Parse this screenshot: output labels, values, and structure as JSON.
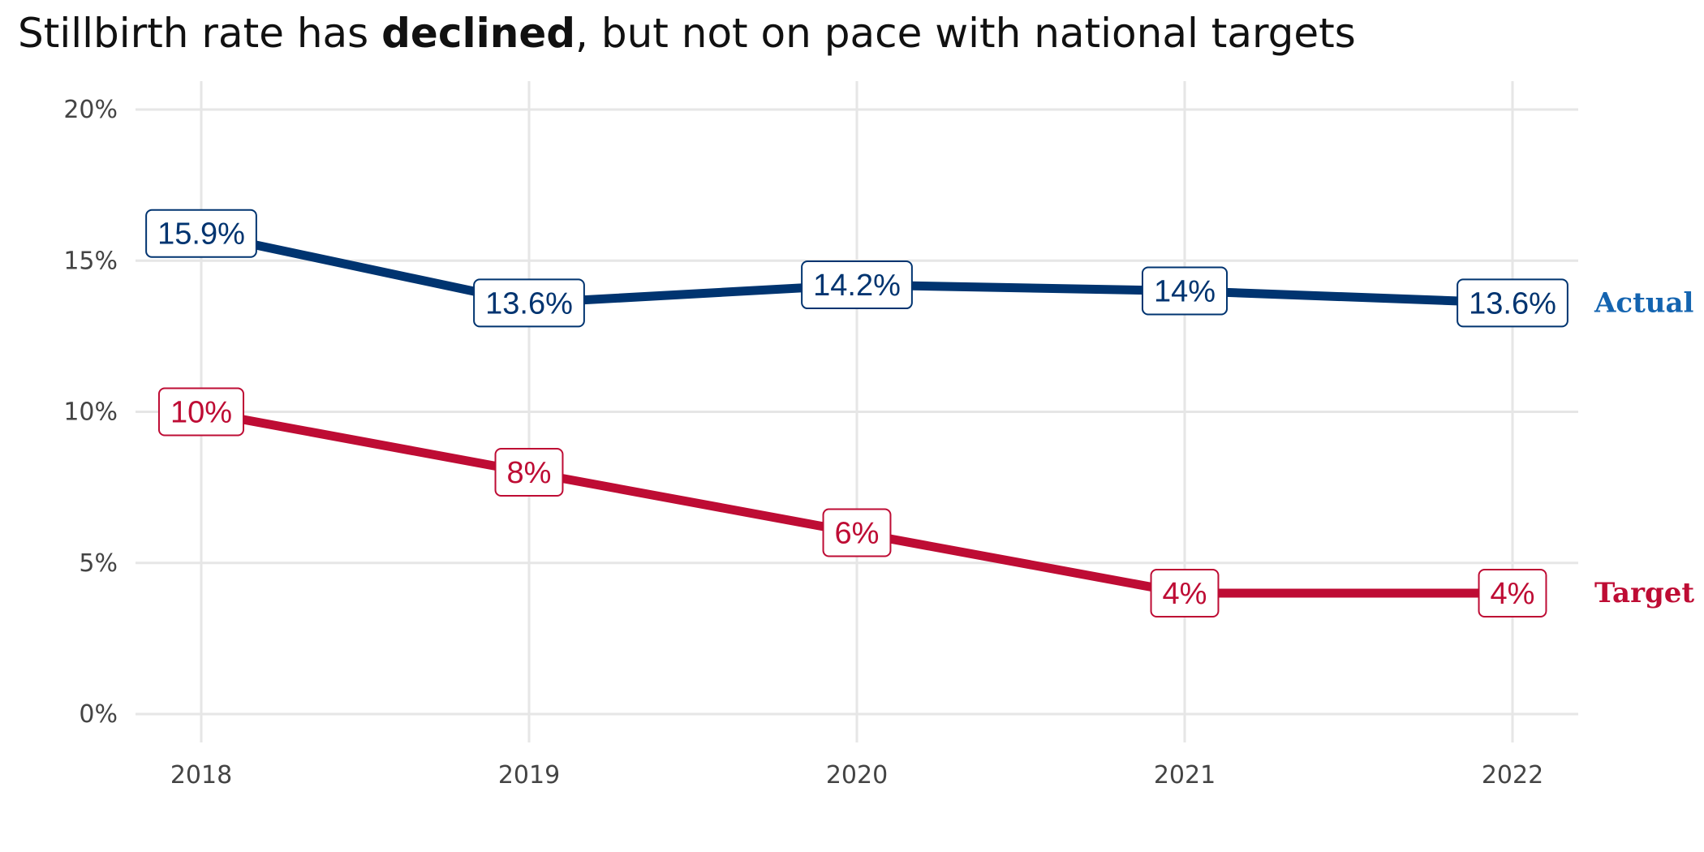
{
  "chart_data": {
    "type": "line",
    "title": {
      "before": "Stillbirth rate has ",
      "emphasis": "declined",
      "after": ", but not on pace with national targets"
    },
    "xlabel": "",
    "ylabel": "",
    "x": [
      2018,
      2019,
      2020,
      2021,
      2022
    ],
    "x_tick_labels": [
      "2018",
      "2019",
      "2020",
      "2021",
      "2022"
    ],
    "ylim": [
      0,
      20
    ],
    "y_ticks": [
      0,
      5,
      10,
      15,
      20
    ],
    "y_tick_labels": [
      "0%",
      "5%",
      "10%",
      "15%",
      "20%"
    ],
    "grid": true,
    "legend": "direct labels at right end of lines",
    "series": [
      {
        "name": "Actual",
        "color": "#003470",
        "label_color": "#1464b0",
        "values": [
          15.9,
          13.6,
          14.2,
          14,
          13.6
        ],
        "data_labels": [
          "15.9%",
          "13.6%",
          "14.2%",
          "14%",
          "13.6%"
        ]
      },
      {
        "name": "Target",
        "color": "#be0c34",
        "label_color": "#be0c34",
        "values": [
          10,
          8,
          6,
          4,
          4
        ],
        "data_labels": [
          "10%",
          "8%",
          "6%",
          "4%",
          "4%"
        ]
      }
    ]
  }
}
